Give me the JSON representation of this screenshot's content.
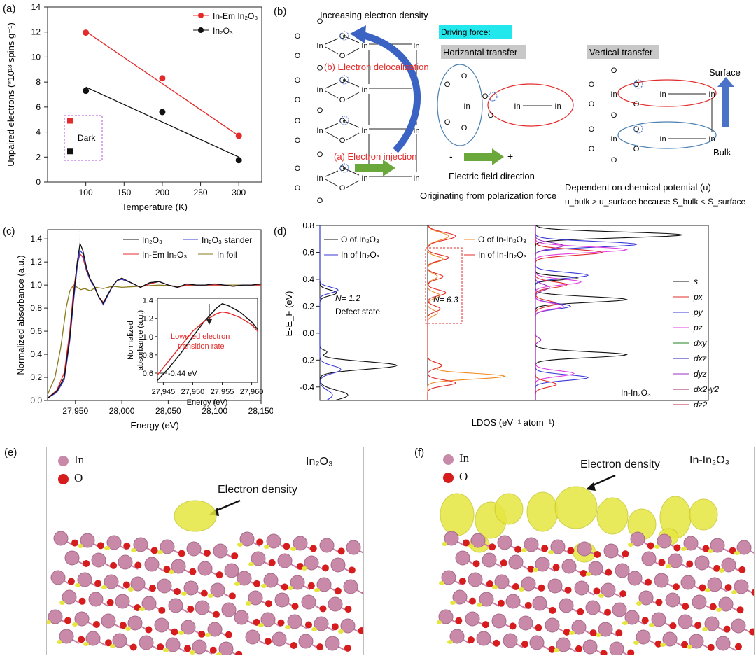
{
  "figure": {
    "panel_labels": [
      "(a)",
      "(b)",
      "(c)",
      "(d)",
      "(e)",
      "(f)"
    ]
  },
  "chart_data": [
    {
      "panel": "a",
      "type": "scatter",
      "xlabel": "Temperature (K)",
      "ylabel": "Unpaired electrons (*10¹³ spins g⁻¹)",
      "xlim": [
        50,
        330
      ],
      "ylim": [
        0,
        14
      ],
      "xticks": [
        100,
        150,
        200,
        250,
        300
      ],
      "yticks": [
        0,
        2,
        4,
        6,
        8,
        10,
        12,
        14
      ],
      "series": [
        {
          "name": "In-Em In₂O₃",
          "color": "#e32b2b",
          "x": [
            100,
            200,
            300
          ],
          "values": [
            11.95,
            8.3,
            3.7
          ],
          "fit": [
            [
              100,
              12.05
            ],
            [
              300,
              3.7
            ]
          ]
        },
        {
          "name": "In₂O₃",
          "color": "#111111",
          "x": [
            100,
            200,
            300
          ],
          "values": [
            7.3,
            5.6,
            1.75
          ],
          "fit": [
            [
              100,
              7.6
            ],
            [
              300,
              2.0
            ]
          ]
        }
      ],
      "inset_label": "Dark",
      "dark_points": [
        {
          "color": "#e32b2b",
          "y": 4.9
        },
        {
          "color": "#111111",
          "y": 2.45
        }
      ]
    },
    {
      "panel": "c",
      "type": "line",
      "xlabel": "Energy (eV)",
      "ylabel": "Normalized absorbance (a.u.)",
      "xlim": [
        27920,
        28150
      ],
      "ylim": [
        0.0,
        1.48
      ],
      "xticks": [
        27950,
        28000,
        28050,
        28100,
        28150
      ],
      "xtick_labels": [
        "27,950",
        "28,000",
        "28,050",
        "28,100",
        "28,150"
      ],
      "yticks": [
        0.0,
        0.2,
        0.4,
        0.6,
        0.8,
        1.0,
        1.2,
        1.4
      ],
      "series": [
        {
          "name": "In₂O₃",
          "color": "#111111",
          "x": [
            27920,
            27930,
            27938,
            27944,
            27948,
            27952,
            27955,
            27958,
            27962,
            27966,
            27970,
            27975,
            27980,
            27985,
            27990,
            27995,
            28000,
            28010,
            28020,
            28030,
            28040,
            28050,
            28060,
            28070,
            28080,
            28090,
            28100,
            28110,
            28120,
            28130,
            28140,
            28150
          ],
          "values": [
            0.02,
            0.08,
            0.2,
            0.55,
            0.9,
            1.2,
            1.36,
            1.3,
            1.15,
            1.05,
            1.0,
            0.9,
            0.84,
            0.92,
            0.99,
            1.04,
            1.06,
            1.02,
            0.98,
            1.02,
            1.03,
            1.0,
            0.98,
            1.01,
            1.0,
            1.0,
            1.01,
            1.0,
            0.99,
            1.0,
            1.0,
            1.01
          ]
        },
        {
          "name": "In₂O₃ stander",
          "color": "#3a3ad6",
          "x": [
            27920,
            27930,
            27938,
            27944,
            27948,
            27952,
            27955,
            27958,
            27962,
            27966,
            27970,
            27975,
            27980,
            27985,
            27990,
            27995,
            28000,
            28010,
            28020,
            28030,
            28040,
            28050,
            28060,
            28070,
            28080,
            28090,
            28100,
            28110,
            28120,
            28130,
            28140,
            28150
          ],
          "values": [
            0.02,
            0.07,
            0.18,
            0.52,
            0.86,
            1.16,
            1.3,
            1.27,
            1.13,
            1.04,
            0.99,
            0.9,
            0.83,
            0.91,
            0.99,
            1.04,
            1.05,
            1.02,
            0.98,
            1.02,
            1.03,
            1.0,
            0.98,
            1.01,
            1.0,
            1.0,
            1.01,
            1.0,
            0.99,
            1.0,
            1.0,
            1.01
          ]
        },
        {
          "name": "In-Em In₂O₃",
          "color": "#e32b2b",
          "x": [
            27920,
            27930,
            27938,
            27944,
            27948,
            27952,
            27955,
            27958,
            27962,
            27966,
            27970,
            27975,
            27980,
            27985,
            27990,
            27995,
            28000,
            28010,
            28020,
            28030,
            28040,
            28050,
            28060,
            28070,
            28080,
            28090,
            28100,
            28110,
            28120,
            28130,
            28140,
            28150
          ],
          "values": [
            0.02,
            0.09,
            0.24,
            0.6,
            0.95,
            1.18,
            1.27,
            1.24,
            1.12,
            1.04,
            0.99,
            0.9,
            0.85,
            0.92,
            0.99,
            1.04,
            1.05,
            1.02,
            0.98,
            1.01,
            1.03,
            1.0,
            0.98,
            1.0,
            1.0,
            1.0,
            1.0,
            1.0,
            0.99,
            1.0,
            1.0,
            1.0
          ]
        },
        {
          "name": "In foil",
          "color": "#8a7a1a",
          "x": [
            27920,
            27928,
            27934,
            27940,
            27944,
            27948,
            27952,
            27956,
            27960,
            27966,
            27972,
            27980,
            27990,
            28000,
            28020,
            28040,
            28060,
            28080,
            28100,
            28120,
            28150
          ],
          "values": [
            0.05,
            0.2,
            0.45,
            0.8,
            0.95,
            1.0,
            0.98,
            0.96,
            0.97,
            0.95,
            0.98,
            0.97,
            0.99,
            0.98,
            0.99,
            1.0,
            0.99,
            1.0,
            1.0,
            1.0,
            1.0
          ]
        }
      ],
      "inset": {
        "xlim": [
          27944,
          27961
        ],
        "ylim": [
          0.5,
          1.42
        ],
        "xticks": [
          27945,
          27950,
          27955,
          27960
        ],
        "xtick_labels": [
          "27,945",
          "27,950",
          "27,955",
          "27,960"
        ],
        "yticks": [
          0.6,
          0.8,
          1.0,
          1.2,
          1.4
        ],
        "xlabel": "Energy (eV)",
        "ylabel_line1": "Normalized",
        "ylabel_line2": "absorbance (a.u.)",
        "annotation_red_1": "Lowered electron",
        "annotation_red_2": "transition rate",
        "shift_label": "-0.44 eV",
        "series": [
          {
            "color": "#111111",
            "x": [
              27944,
              27946,
              27948,
              27950,
              27952,
              27954,
              27955,
              27956,
              27958,
              27960,
              27961
            ],
            "values": [
              0.52,
              0.66,
              0.82,
              1.0,
              1.17,
              1.31,
              1.36,
              1.34,
              1.27,
              1.16,
              1.08
            ]
          },
          {
            "color": "#e32b2b",
            "x": [
              27944,
              27946,
              27948,
              27950,
              27952,
              27954,
              27955,
              27956,
              27958,
              27960,
              27961
            ],
            "values": [
              0.58,
              0.74,
              0.9,
              1.06,
              1.17,
              1.25,
              1.27,
              1.26,
              1.21,
              1.13,
              1.06
            ]
          }
        ]
      }
    },
    {
      "panel": "d",
      "type": "line",
      "xlabel": "LDOS (eV⁻¹ atom⁻¹)",
      "ylabel": "E-E_F (eV)",
      "ylim": [
        -0.5,
        0.8
      ],
      "yticks": [
        -0.4,
        -0.2,
        0.0,
        0.2,
        0.4,
        0.6,
        0.8
      ],
      "legend_left": [
        "O of In₂O₃",
        "In of In₂O₃"
      ],
      "legend_mid": [
        "O of In-In₂O₃",
        "In of In-In₂O₃"
      ],
      "legend_right": [
        "s",
        "px",
        "py",
        "pz",
        "dxy",
        "dxz",
        "dyz",
        "dx2-y2",
        "dz2"
      ],
      "legend_right_colors": [
        "#111111",
        "#e32b2b",
        "#3a3ad6",
        "#e040e0",
        "#208020",
        "#1d1dae",
        "#9b30c0",
        "#a0206a",
        "#c02040"
      ],
      "annotation_left_1": "N= 1.2",
      "annotation_left_2": "Defect state",
      "annotation_mid": "N= 6.3",
      "annotation_right": "In-In₂O₃"
    }
  ],
  "panel_b": {
    "title_top": "Increasing electron density",
    "driving_force": "Driving force:",
    "horizontal": "Horizantal transfer",
    "vertical": "Vertical transfer",
    "deloc": "(b) Electron delocalization",
    "inject": "(a) Electron injection",
    "efield": "Electric field direction",
    "polar": "Originating from polarization force",
    "surface": "Surface",
    "bulk": "Bulk",
    "minus": "-",
    "plus": "+",
    "chem_pot": "Dependent on chemical potential (u)",
    "chem_rel": "u_bulk > u_surface because S_bulk < S_surface",
    "atom_in": "In",
    "atom_o": "O",
    "electron": "e"
  },
  "panel_e": {
    "legend": [
      "In",
      "O"
    ],
    "title": "In₂O₃",
    "annotation": "Electron density",
    "colors": {
      "In": "#c88aa8",
      "O": "#d61c1c",
      "density": "#e8e84a"
    }
  },
  "panel_f": {
    "legend": [
      "In",
      "O"
    ],
    "title": "In-In₂O₃",
    "annotation": "Electron density"
  }
}
